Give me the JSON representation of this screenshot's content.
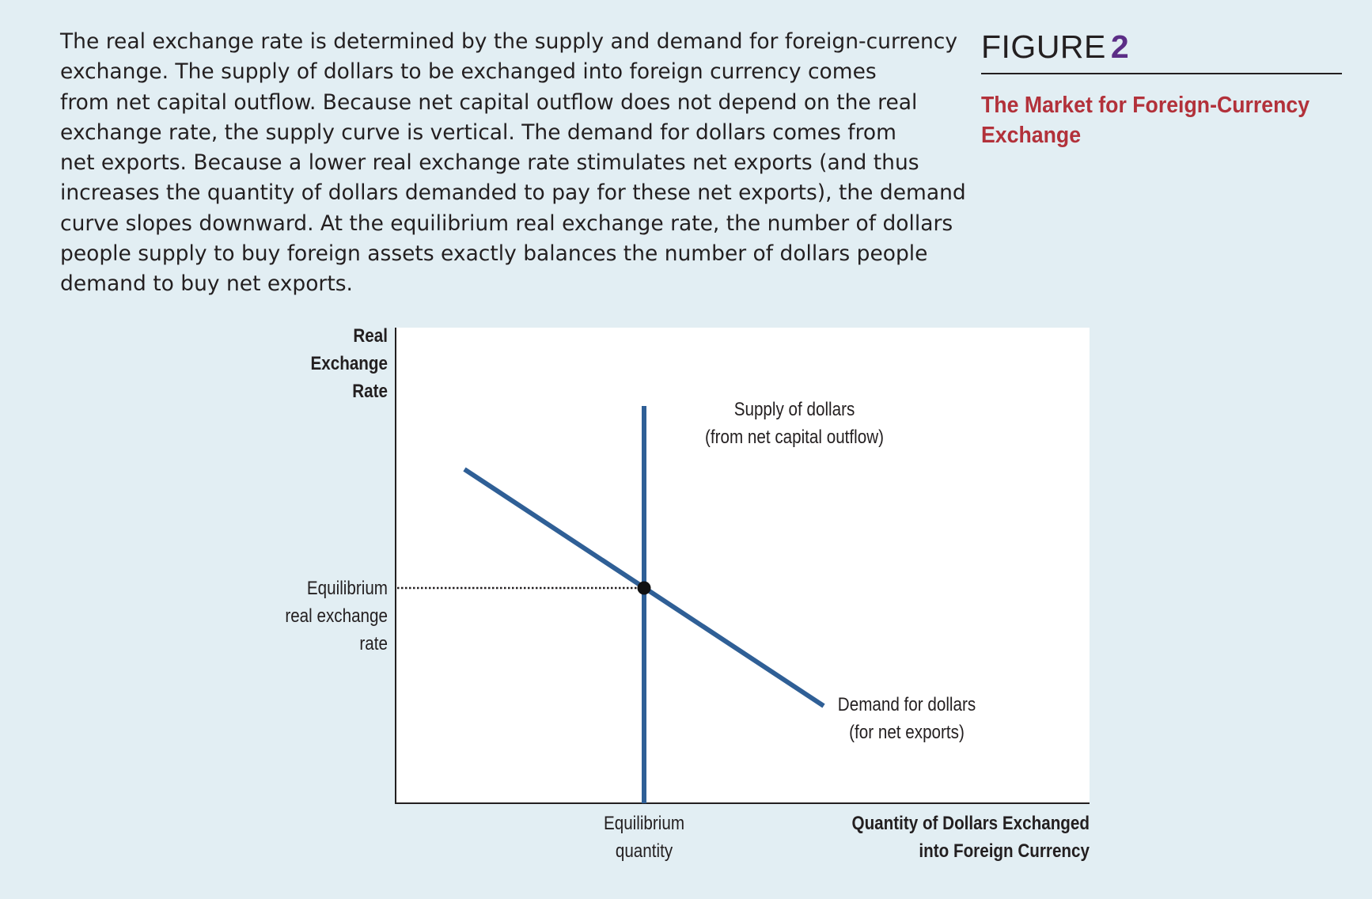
{
  "caption": {
    "lines": [
      "The real exchange rate is determined by the supply and demand for foreign-currency",
      "exchange. The supply of dollars to be exchanged into foreign currency comes",
      "from net capital outflow. Because net capital outflow does not depend on the real",
      "exchange rate, the supply curve is vertical. The demand for dollars comes from",
      "net exports. Because a lower real exchange rate stimulates net exports (and thus",
      "increases the quantity of dollars demanded to pay for these net exports), the demand",
      "curve slopes downward. At the equilibrium real exchange rate, the number of dollars",
      "people supply to buy foreign assets exactly balances the number of dollars people",
      "demand to buy net exports."
    ]
  },
  "figure": {
    "label": "FIGURE",
    "number": "2",
    "title_lines": [
      "The Market for Foreign-Currency",
      "Exchange"
    ],
    "colors": {
      "title": "#b2313a",
      "number": "#5b2d86",
      "curve": "#2f5f96",
      "background": "#e2eef3"
    }
  },
  "diagram": {
    "y_axis_label": [
      "Real",
      "Exchange",
      "Rate"
    ],
    "x_axis_label": [
      "Quantity of Dollars Exchanged",
      "into Foreign Currency"
    ],
    "supply_label": [
      "Supply of dollars",
      "(from net capital outflow)"
    ],
    "demand_label": [
      "Demand for dollars",
      "(for net exports)"
    ],
    "eq_rate_label": [
      "Equilibrium",
      "real exchange",
      "rate"
    ],
    "eq_quantity_label": [
      "Equilibrium",
      "quantity"
    ]
  }
}
